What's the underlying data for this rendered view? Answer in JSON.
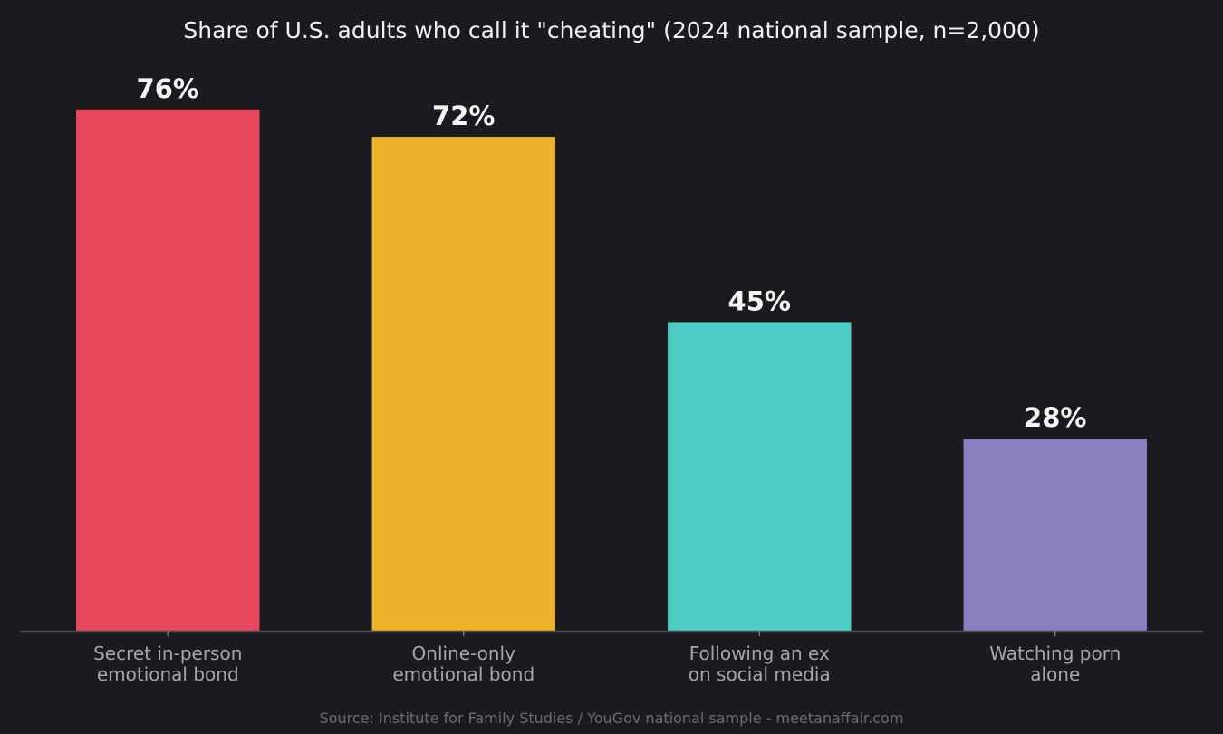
{
  "chart_data": {
    "type": "bar",
    "title": "Share of U.S. adults who call it \"cheating\" (2024 national sample, n=2,000)",
    "categories": [
      [
        "Secret in-person",
        "emotional bond"
      ],
      [
        "Online-only",
        "emotional bond"
      ],
      [
        "Following an ex",
        "on social media"
      ],
      [
        "Watching porn",
        "alone"
      ]
    ],
    "values": [
      76,
      72,
      45,
      28
    ],
    "value_labels": [
      "76%",
      "72%",
      "45%",
      "28%"
    ],
    "colors": [
      "#e8485b",
      "#edb32a",
      "#4ecdc4",
      "#8b7fc1"
    ],
    "ylim": [
      0,
      84.7
    ],
    "grid": false,
    "xlabel": "",
    "ylabel": "",
    "source": "Source: Institute for Family Studies / YouGov national sample - meetanaffair.com"
  }
}
